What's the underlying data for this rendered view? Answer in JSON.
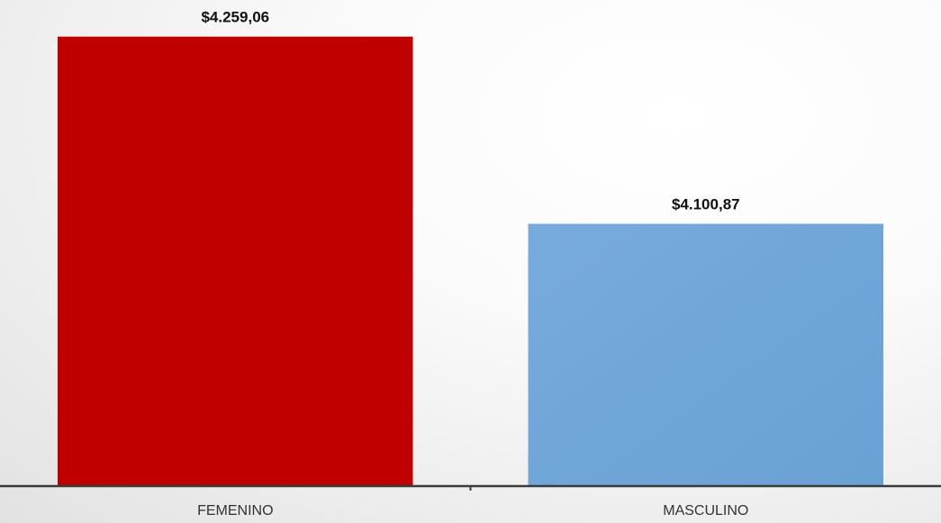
{
  "chart_data": {
    "type": "bar",
    "categories": [
      "FEMENINO",
      "MASCULINO"
    ],
    "values": [
      4259.06,
      4100.87
    ],
    "data_labels": [
      "$4.259,06",
      "$4.100,87"
    ],
    "colors": [
      "#c00000",
      "#6fa5d8"
    ],
    "title": "",
    "xlabel": "",
    "ylabel": "",
    "ylim": [
      3880,
      4290
    ],
    "grid": false,
    "legend": "none"
  }
}
